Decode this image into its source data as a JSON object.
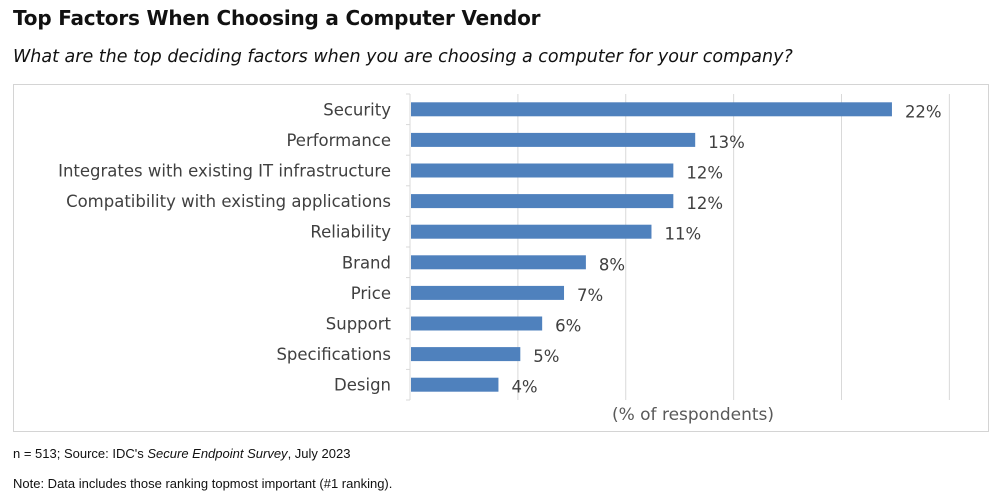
{
  "chart_data": {
    "type": "bar",
    "orientation": "horizontal",
    "title": "Top Factors When Choosing a Computer Vendor",
    "subtitle": "What are the top deciding factors when you are choosing a computer for your company?",
    "categories": [
      "Security",
      "Performance",
      "Integrates with existing IT infrastructure",
      "Compatibility with existing applications",
      "Reliability",
      "Brand",
      "Price",
      "Support",
      "Specifications",
      "Design"
    ],
    "values": [
      22,
      13,
      12,
      12,
      11,
      8,
      7,
      6,
      5,
      4
    ],
    "data_labels": [
      "22%",
      "13%",
      "12%",
      "12%",
      "11%",
      "8%",
      "7%",
      "6%",
      "5%",
      "4%"
    ],
    "xlabel": "(% of respondents)",
    "ylabel": "",
    "xlim": [
      0,
      25
    ],
    "grid": "vertical",
    "bar_color": "#4f81bd"
  },
  "footnotes": {
    "source_prefix": "n = 513; Source: IDC's ",
    "source_title": "Secure Endpoint Survey",
    "source_suffix": ", July 2023",
    "note": "Note: Data includes those ranking topmost important  (#1 ranking)."
  }
}
